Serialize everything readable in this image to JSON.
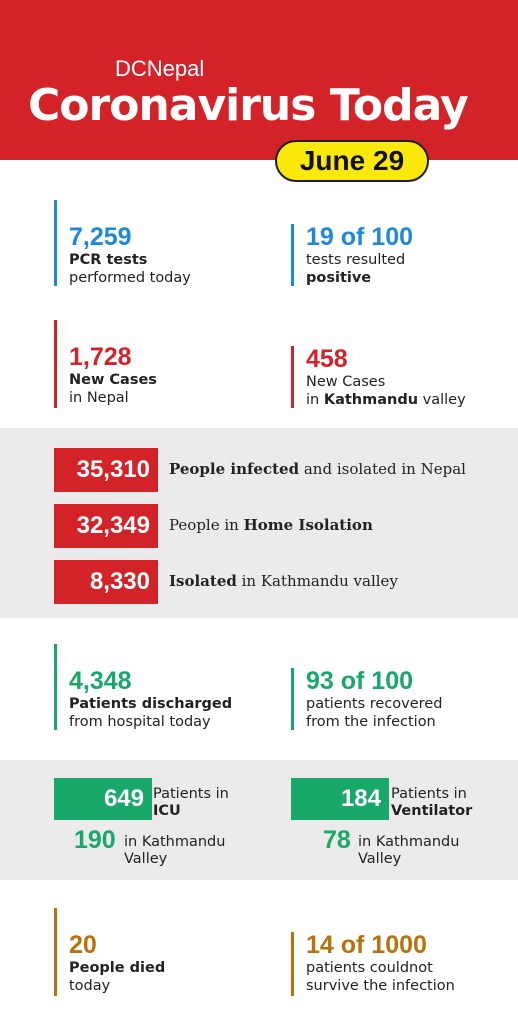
{
  "header": {
    "brand": "DCNepal",
    "title": "Coronavirus Today",
    "date": "June 29"
  },
  "tests": {
    "pcr": {
      "value": "7,259",
      "line1": "PCR tests",
      "line2": "performed today"
    },
    "positivity": {
      "value": "19 of 100",
      "line1": "tests resulted",
      "line2": "positive"
    }
  },
  "cases": {
    "nepal": {
      "value": "1,728",
      "line1": "New Cases",
      "line2": "in Nepal"
    },
    "kathmandu": {
      "value": "458",
      "line1": "New Cases",
      "line2_pre": "in ",
      "line2_bold": "Kathmandu",
      "line2_post": " valley"
    }
  },
  "isolation": [
    {
      "value": "35,310",
      "bold": "People infected",
      "rest": " and isolated in Nepal",
      "bold_first": true
    },
    {
      "value": "32,349",
      "pre": "People in ",
      "bold": "Home Isolation",
      "bold_first": false
    },
    {
      "value": "8,330",
      "bold": "Isolated",
      "rest": " in Kathmandu valley",
      "bold_first": true
    }
  ],
  "recovery": {
    "discharged": {
      "value": "4,348",
      "line1": "Patients discharged",
      "line2": "from hospital today"
    },
    "rate": {
      "value": "93 of 100",
      "line1": "patients recovered",
      "line2": "from the infection"
    }
  },
  "critical": {
    "icu": {
      "value": "649",
      "label1": "Patients in",
      "label2": "ICU",
      "sub_value": "190",
      "sub_line1": "in Kathmandu",
      "sub_line2": "Valley"
    },
    "ventilator": {
      "value": "184",
      "label1": "Patients in",
      "label2": "Ventilator",
      "sub_value": "78",
      "sub_line1": "in Kathmandu",
      "sub_line2": "Valley"
    }
  },
  "deaths": {
    "today": {
      "value": "20",
      "line1": "People died",
      "line2": "today"
    },
    "rate": {
      "value": "14 of 1000",
      "line1": "patients couldnot",
      "line2": "survive the infection"
    }
  },
  "colors": {
    "red": "#d42328",
    "blue": "#1e88d9",
    "green": "#17a86a",
    "gold": "#b8720c",
    "yellow": "#fde80c",
    "band": "#ebebeb"
  }
}
